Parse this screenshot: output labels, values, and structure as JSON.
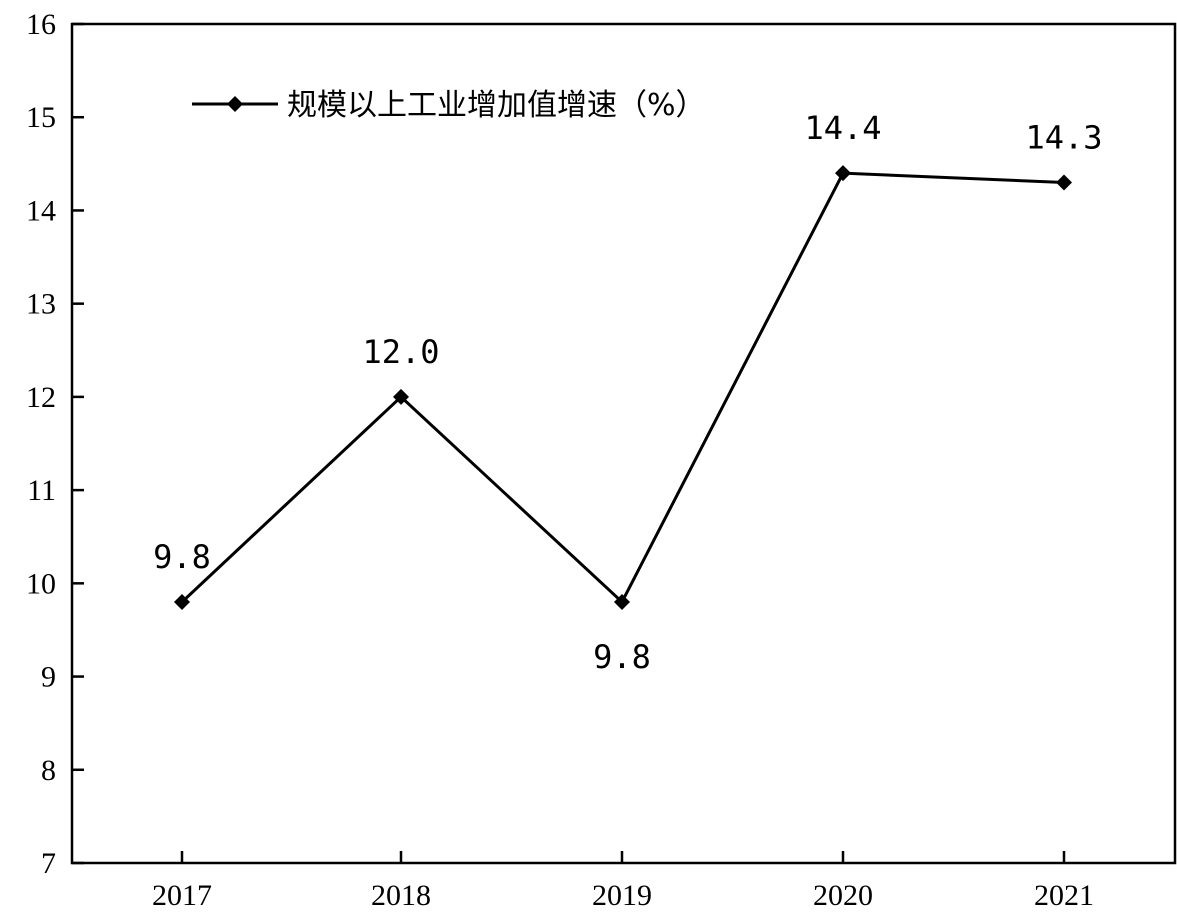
{
  "chart_data": {
    "type": "line",
    "categories": [
      "2017",
      "2018",
      "2019",
      "2020",
      "2021"
    ],
    "series": [
      {
        "name": "规模以上工业增加值增速（%）",
        "values": [
          9.8,
          12.0,
          9.8,
          14.4,
          14.3
        ],
        "data_labels": [
          "9.8",
          "12.0",
          "9.8",
          "14.4",
          "14.3"
        ],
        "label_positions": [
          "above",
          "above",
          "below",
          "above",
          "above"
        ],
        "marker": "diamond",
        "color": "#000000"
      }
    ],
    "y_ticks": [
      "7",
      "8",
      "9",
      "10",
      "11",
      "12",
      "13",
      "14",
      "15",
      "16"
    ],
    "ylim": [
      7,
      16
    ],
    "grid": false,
    "legend_position": "top-left"
  }
}
